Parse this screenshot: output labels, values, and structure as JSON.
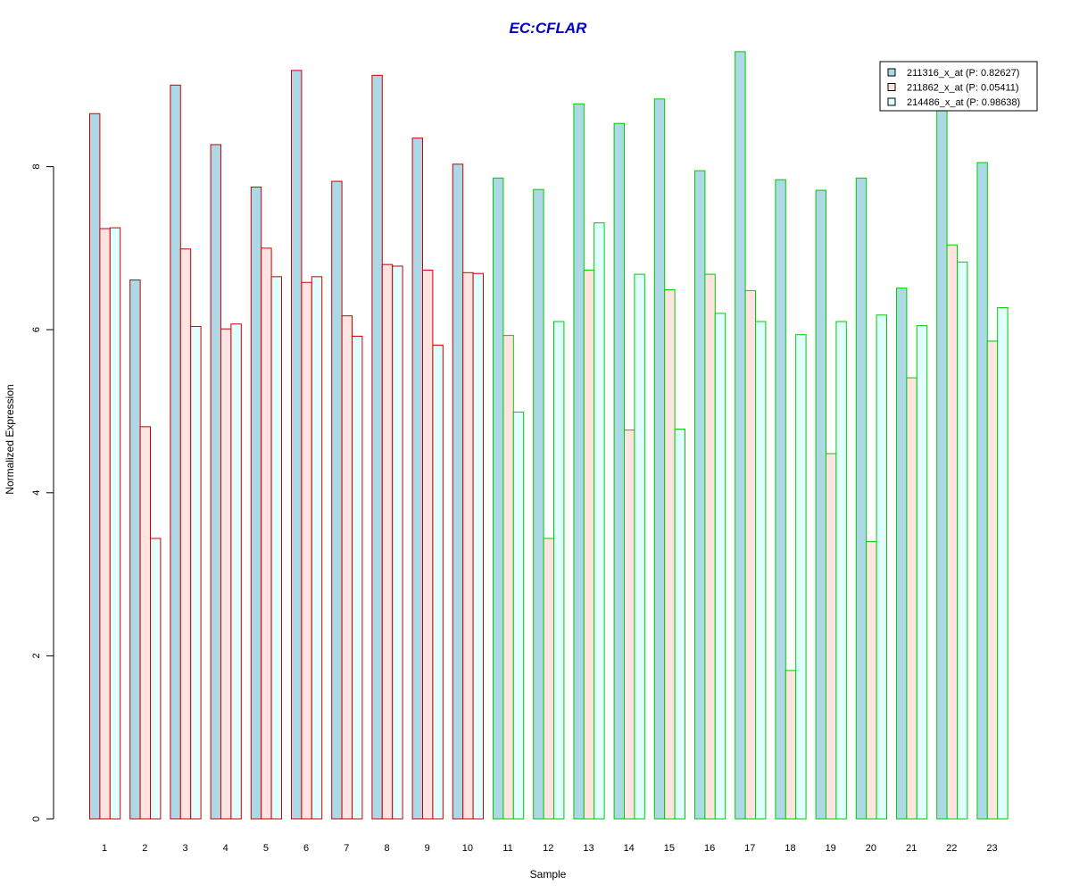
{
  "chart_data": {
    "type": "bar",
    "title": "EC:CFLAR",
    "xlabel": "Sample",
    "ylabel": "Normalized Expression",
    "ylim": [
      0,
      9.5
    ],
    "y_ticks": [
      0,
      2,
      4,
      6,
      8
    ],
    "grid": false,
    "legend_position": "top-right",
    "categories": [
      "1",
      "2",
      "3",
      "4",
      "5",
      "6",
      "7",
      "8",
      "9",
      "10",
      "11",
      "12",
      "13",
      "14",
      "15",
      "16",
      "17",
      "18",
      "19",
      "20",
      "21",
      "22",
      "23"
    ],
    "group_border_colors": [
      "#cc0000",
      "#cc0000",
      "#cc0000",
      "#cc0000",
      "#cc0000",
      "#cc0000",
      "#cc0000",
      "#cc0000",
      "#cc0000",
      "#cc0000",
      "#00cc00",
      "#00cc00",
      "#00cc00",
      "#00cc00",
      "#00cc00",
      "#00cc00",
      "#00cc00",
      "#00cc00",
      "#00cc00",
      "#00cc00",
      "#00cc00",
      "#00cc00",
      "#00cc00"
    ],
    "series": [
      {
        "name": "211316_x_at (P: 0.82627)",
        "fill": "#add8e6",
        "values": [
          8.65,
          6.61,
          9.0,
          8.27,
          7.75,
          9.18,
          7.82,
          9.12,
          8.35,
          8.03,
          7.86,
          7.72,
          8.77,
          8.53,
          8.83,
          7.95,
          9.41,
          7.84,
          7.71,
          7.86,
          6.51,
          8.85,
          8.05
        ]
      },
      {
        "name": "211862_x_at (P: 0.05411)",
        "fill": "#ffe4e1",
        "values": [
          7.24,
          4.81,
          6.99,
          6.01,
          7.0,
          6.58,
          6.17,
          6.8,
          6.73,
          6.7,
          5.93,
          3.44,
          6.73,
          4.77,
          6.49,
          6.68,
          6.48,
          1.82,
          4.48,
          3.4,
          5.41,
          7.04,
          5.86
        ]
      },
      {
        "name": "214486_x_at (P: 0.98638)",
        "fill": "#e0ffff",
        "values": [
          7.25,
          3.44,
          6.04,
          6.07,
          6.65,
          6.65,
          5.92,
          6.78,
          5.81,
          6.69,
          4.99,
          6.1,
          7.31,
          6.68,
          4.78,
          6.2,
          6.1,
          5.94,
          6.1,
          6.18,
          6.05,
          6.83,
          6.27
        ]
      }
    ]
  }
}
